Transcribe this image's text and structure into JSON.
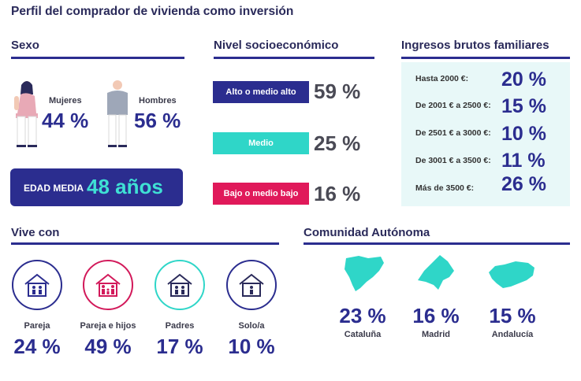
{
  "title": "Perfil del comprador de vivienda como inversión",
  "sexo": {
    "title": "Sexo",
    "mujeres_label": "Mujeres",
    "mujeres_value": "44 %",
    "hombres_label": "Hombres",
    "hombres_value": "56 %",
    "edad_label": "EDAD MEDIA",
    "edad_value": "48 años"
  },
  "nivel": {
    "title": "Nivel socioeconómico",
    "items": [
      {
        "label": "Alto o medio alto",
        "value": "59 %",
        "color": "#2b2d8f"
      },
      {
        "label": "Medio",
        "value": "25 %",
        "color": "#2fd6c8"
      },
      {
        "label": "Bajo o medio bajo",
        "value": "16 %",
        "color": "#e0195a"
      }
    ]
  },
  "ingresos": {
    "title": "Ingresos brutos familiares",
    "items": [
      {
        "label": "Hasta 2000 €:",
        "value": "20 %"
      },
      {
        "label": "De 2001 € a 2500 €:",
        "value": "15 %"
      },
      {
        "label": "De 2501 € a 3000 €:",
        "value": "10 %"
      },
      {
        "label": "De 3001 € a 3500 €:",
        "value": "11 %"
      },
      {
        "label": "Más de 3500 €:",
        "value": "26 %"
      }
    ]
  },
  "vive_con": {
    "title": "Vive con",
    "items": [
      {
        "label": "Pareja",
        "value": "24 %",
        "color": "#2b2d8f",
        "icon": "house-couple-icon"
      },
      {
        "label": "Pareja e hijos",
        "value": "49 %",
        "color": "#d2195a",
        "icon": "house-family-icon"
      },
      {
        "label": "Padres",
        "value": "17 %",
        "color": "#2fd6c8",
        "icon": "house-parents-icon"
      },
      {
        "label": "Solo/a",
        "value": "10 %",
        "color": "#2b2d8f",
        "icon": "house-single-icon"
      }
    ]
  },
  "comunidad": {
    "title": "Comunidad Autónoma",
    "items": [
      {
        "label": "Cataluña",
        "value": "23 %",
        "icon": "cataluna-map-icon"
      },
      {
        "label": "Madrid",
        "value": "16 %",
        "icon": "madrid-map-icon"
      },
      {
        "label": "Andalucía",
        "value": "15 %",
        "icon": "andalucia-map-icon"
      }
    ]
  },
  "colors": {
    "navy": "#2b2d8f",
    "teal": "#2fd6c8",
    "magenta": "#e0195a",
    "light_teal": "#e8f8f8"
  },
  "chart_data": [
    {
      "type": "table",
      "title": "Sexo",
      "categories": [
        "Mujeres",
        "Hombres"
      ],
      "values": [
        44,
        56
      ]
    },
    {
      "type": "bar",
      "title": "Nivel socioeconómico",
      "categories": [
        "Alto o medio alto",
        "Medio",
        "Bajo o medio bajo"
      ],
      "values": [
        59,
        25,
        16
      ]
    },
    {
      "type": "table",
      "title": "Ingresos brutos familiares",
      "categories": [
        "Hasta 2000 €",
        "De 2001 € a 2500 €",
        "De 2501 € a 3000 €",
        "De 3001 € a 3500 €",
        "Más de 3500 €"
      ],
      "values": [
        20,
        15,
        10,
        11,
        26
      ]
    },
    {
      "type": "table",
      "title": "Vive con",
      "categories": [
        "Pareja",
        "Pareja e hijos",
        "Padres",
        "Solo/a"
      ],
      "values": [
        24,
        49,
        17,
        10
      ]
    },
    {
      "type": "table",
      "title": "Comunidad Autónoma",
      "categories": [
        "Cataluña",
        "Madrid",
        "Andalucía"
      ],
      "values": [
        23,
        16,
        15
      ]
    }
  ]
}
